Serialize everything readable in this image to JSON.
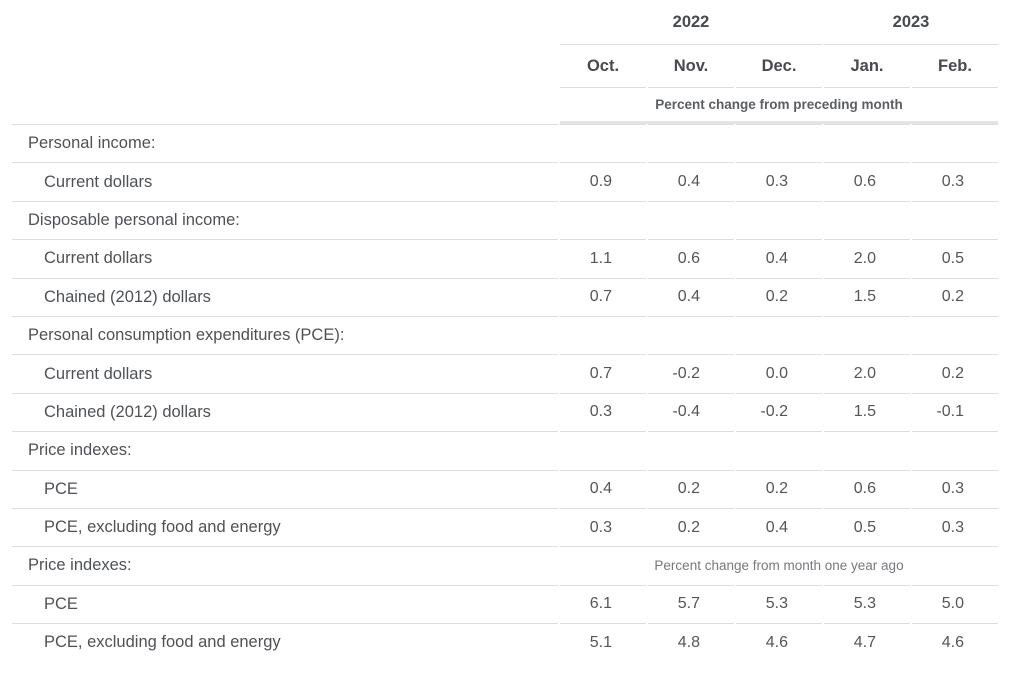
{
  "table": {
    "year_groups": [
      {
        "label": "2022",
        "span": 3
      },
      {
        "label": "2023",
        "span": 2
      }
    ],
    "months": [
      "Oct.",
      "Nov.",
      "Dec.",
      "Jan.",
      "Feb."
    ],
    "units_subheader": "Percent change from preceding month",
    "rows": [
      {
        "type": "section",
        "label": "Personal income:"
      },
      {
        "type": "data",
        "label": "Current dollars",
        "values": [
          "0.9",
          "0.4",
          "0.3",
          "0.6",
          "0.3"
        ]
      },
      {
        "type": "section",
        "label": "Disposable personal income:"
      },
      {
        "type": "data",
        "label": "Current dollars",
        "values": [
          "1.1",
          "0.6",
          "0.4",
          "2.0",
          "0.5"
        ]
      },
      {
        "type": "data",
        "label": "Chained (2012) dollars",
        "values": [
          "0.7",
          "0.4",
          "0.2",
          "1.5",
          "0.2"
        ]
      },
      {
        "type": "section",
        "label": "Personal consumption expenditures (PCE):"
      },
      {
        "type": "data",
        "label": "Current dollars",
        "values": [
          "0.7",
          "-0.2",
          "0.0",
          "2.0",
          "0.2"
        ]
      },
      {
        "type": "data",
        "label": "Chained (2012) dollars",
        "values": [
          "0.3",
          "-0.4",
          "-0.2",
          "1.5",
          "-0.1"
        ]
      },
      {
        "type": "section",
        "label": "Price indexes:"
      },
      {
        "type": "data",
        "label": "PCE",
        "values": [
          "0.4",
          "0.2",
          "0.2",
          "0.6",
          "0.3"
        ]
      },
      {
        "type": "data",
        "label": "PCE, excluding food and energy",
        "values": [
          "0.3",
          "0.2",
          "0.4",
          "0.5",
          "0.3"
        ]
      },
      {
        "type": "section",
        "label": "Price indexes:",
        "note": "Percent change from month one year ago"
      },
      {
        "type": "data",
        "label": "PCE",
        "values": [
          "6.1",
          "5.7",
          "5.3",
          "5.3",
          "5.0"
        ]
      },
      {
        "type": "data",
        "label": "PCE, excluding food and energy",
        "values": [
          "5.1",
          "4.8",
          "4.6",
          "4.7",
          "4.6"
        ]
      }
    ],
    "colors": {
      "background": "#ffffff",
      "row_border": "#dcdde0",
      "units_band_border": "#e4e4e6",
      "header_text": "#474a4e",
      "label_text": "#4e5256",
      "value_text": "#53565a",
      "note_text": "#76797d"
    }
  }
}
